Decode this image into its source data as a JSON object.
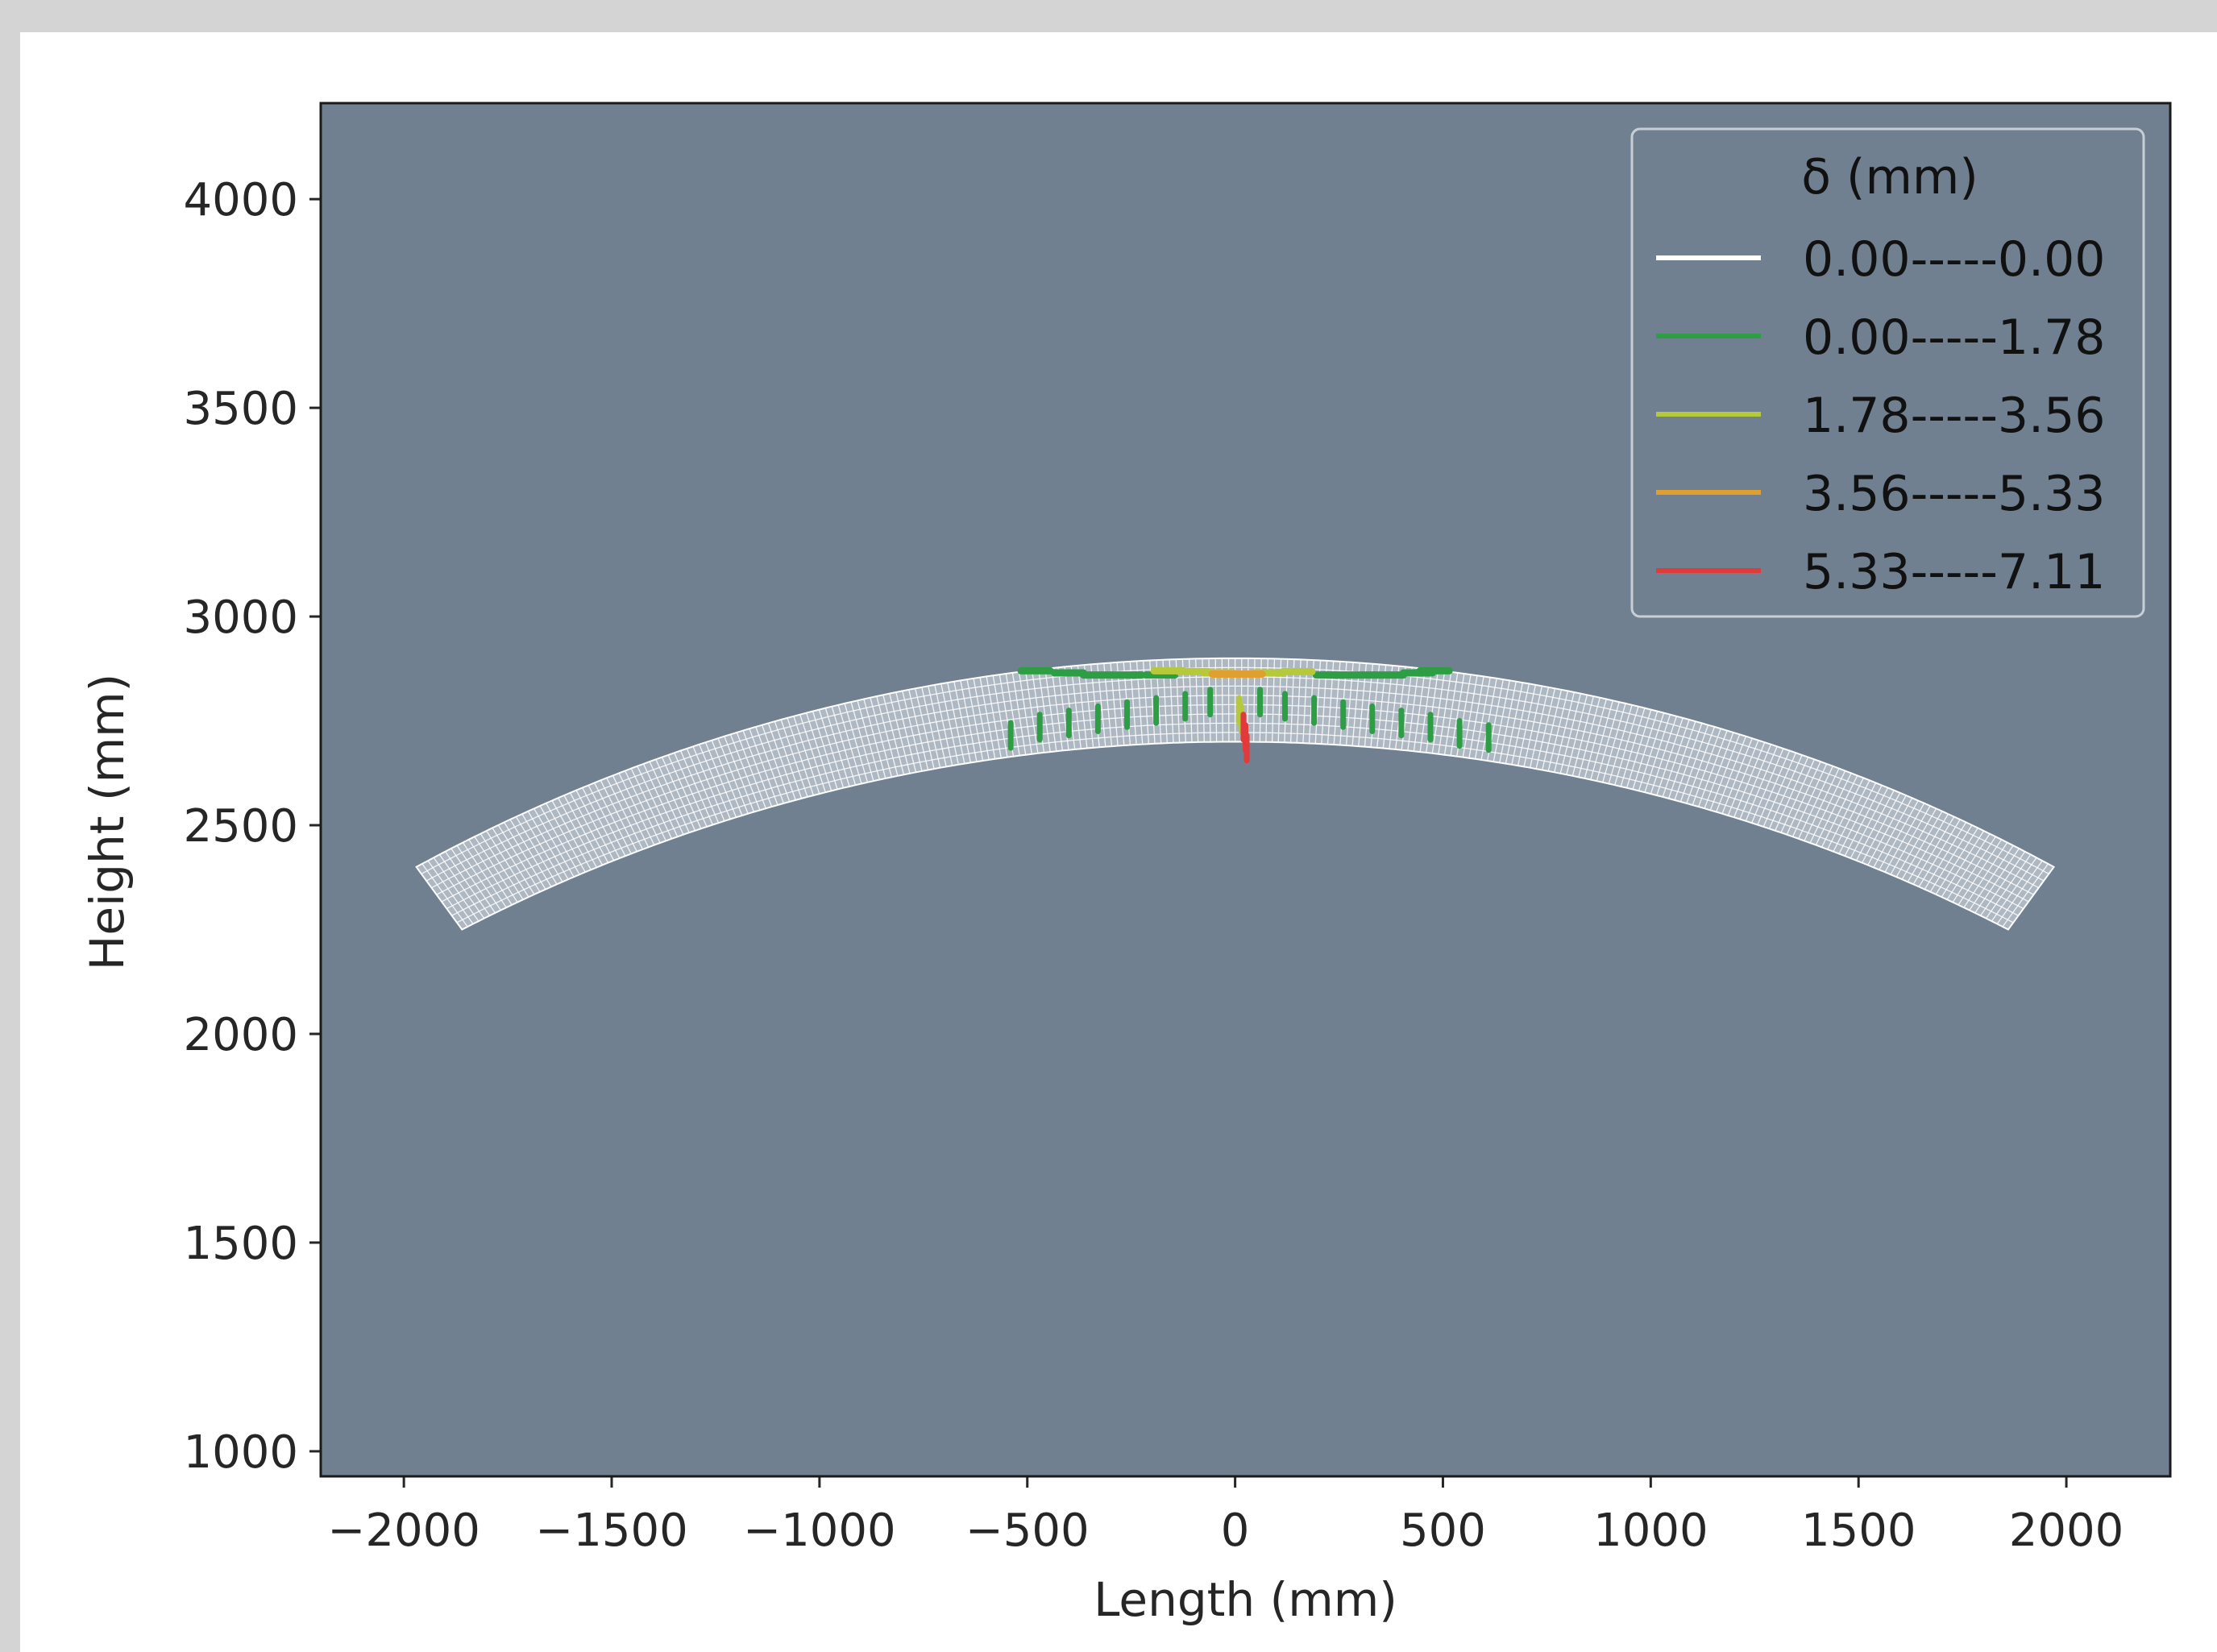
{
  "chart_data": {
    "type": "scatter",
    "title": "",
    "xlabel": "Length (mm)",
    "ylabel": "Height (mm)",
    "xlim": [
      -2200,
      2250
    ],
    "ylim": [
      940,
      4230
    ],
    "xticks": [
      -2000,
      -1500,
      -1000,
      -500,
      0,
      500,
      1000,
      1500,
      2000
    ],
    "xtick_labels": [
      "−2000",
      "−1500",
      "−1000",
      "−500",
      "0",
      "500",
      "1000",
      "1500",
      "2000"
    ],
    "yticks": [
      1000,
      1500,
      2000,
      2500,
      3000,
      3500,
      4000
    ],
    "ytick_labels": [
      "1000",
      "1500",
      "2000",
      "2500",
      "3000",
      "3500",
      "4000"
    ],
    "grid": false,
    "plot_background": "#708090",
    "legend": {
      "title": "δ (mm)",
      "placement": "top-right",
      "entries": [
        {
          "label": "0.00-----0.00",
          "color": "#ffffff"
        },
        {
          "label": "0.00-----1.78",
          "color": "#2e9e45"
        },
        {
          "label": "1.78-----3.56",
          "color": "#b5c93a"
        },
        {
          "label": "3.56-----5.33",
          "color": "#e0a030"
        },
        {
          "label": "5.33-----7.11",
          "color": "#e03a3a"
        }
      ]
    },
    "mesh": {
      "description_free": true,
      "left_end_outer": [
        -1970,
        2400
      ],
      "left_end_inner": [
        -1860,
        2250
      ],
      "crown_outer": [
        0,
        2900
      ],
      "crown_inner": [
        0,
        2700
      ],
      "color": "#ffffff"
    },
    "series": [
      {
        "range": "0.00-----1.78",
        "color": "#2e9e45",
        "points": [
          [
            -480,
            2870
          ],
          [
            -400,
            2865
          ],
          [
            -330,
            2860
          ],
          [
            -260,
            2860
          ],
          [
            -180,
            2860
          ],
          [
            230,
            2860
          ],
          [
            300,
            2860
          ],
          [
            370,
            2860
          ],
          [
            440,
            2865
          ],
          [
            480,
            2870
          ],
          [
            -540,
            2720
          ],
          [
            -470,
            2740
          ],
          [
            -400,
            2750
          ],
          [
            -330,
            2760
          ],
          [
            -260,
            2770
          ],
          [
            -190,
            2780
          ],
          [
            -120,
            2790
          ],
          [
            -60,
            2800
          ],
          [
            60,
            2800
          ],
          [
            120,
            2790
          ],
          [
            190,
            2780
          ],
          [
            260,
            2770
          ],
          [
            330,
            2760
          ],
          [
            400,
            2750
          ],
          [
            470,
            2740
          ],
          [
            540,
            2725
          ],
          [
            610,
            2715
          ]
        ]
      },
      {
        "range": "1.78-----3.56",
        "color": "#b5c93a",
        "points": [
          [
            -160,
            2870
          ],
          [
            -100,
            2868
          ],
          [
            -40,
            2865
          ],
          [
            80,
            2865
          ],
          [
            150,
            2868
          ],
          [
            10,
            2780
          ],
          [
            15,
            2760
          ]
        ]
      },
      {
        "range": "3.56-----5.33",
        "color": "#e0a030",
        "points": [
          [
            -20,
            2862
          ],
          [
            30,
            2862
          ]
        ]
      },
      {
        "range": "5.33-----7.11",
        "color": "#e03a3a",
        "points": [
          [
            20,
            2740
          ],
          [
            25,
            2715
          ],
          [
            28,
            2690
          ]
        ]
      }
    ]
  }
}
